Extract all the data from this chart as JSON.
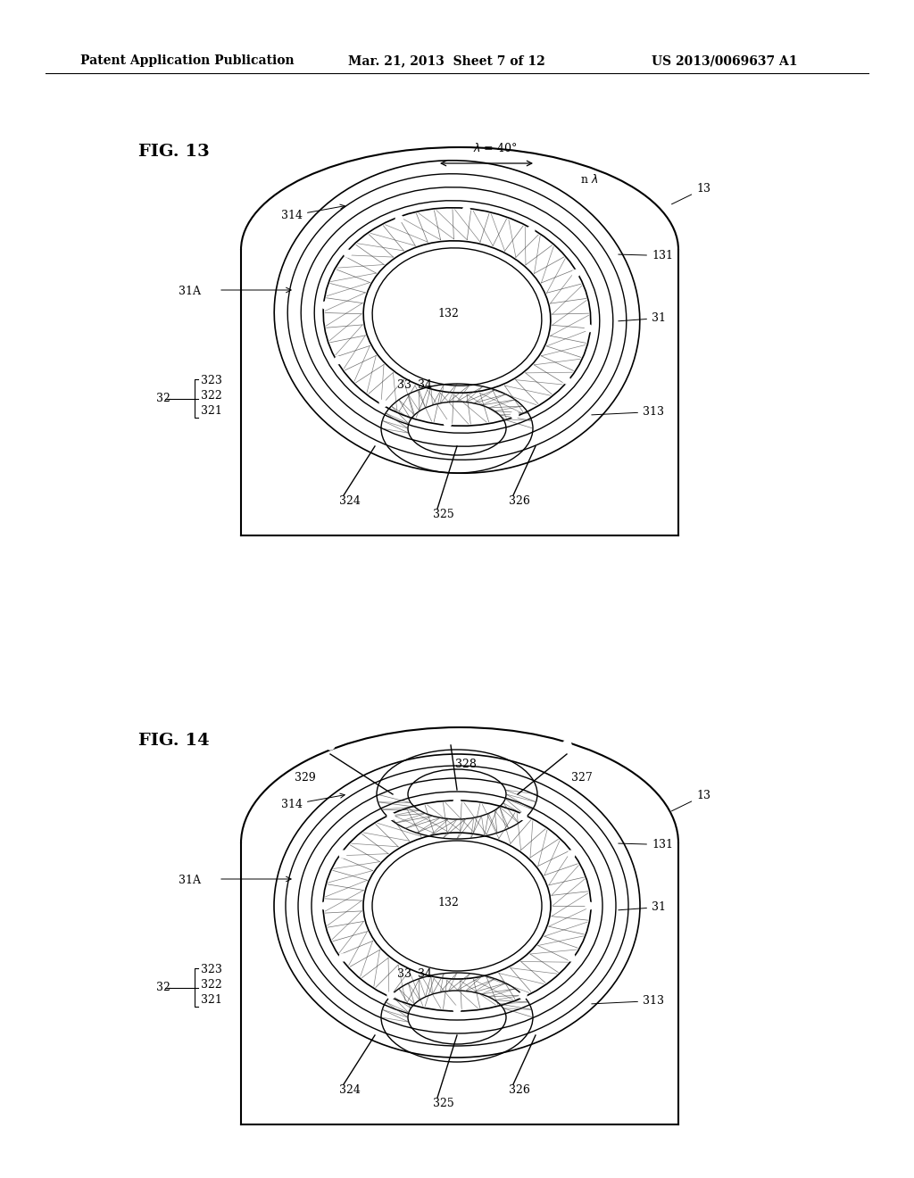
{
  "title_text": "Patent Application Publication",
  "date_text": "Mar. 21, 2013  Sheet 7 of 12",
  "patent_text": "US 2013/0069637 A1",
  "bg_color": "#ffffff",
  "fig13_label": "FIG. 13",
  "fig14_label": "FIG. 14",
  "text_color": "#000000",
  "line_color": "#000000",
  "gray_color": "#555555"
}
